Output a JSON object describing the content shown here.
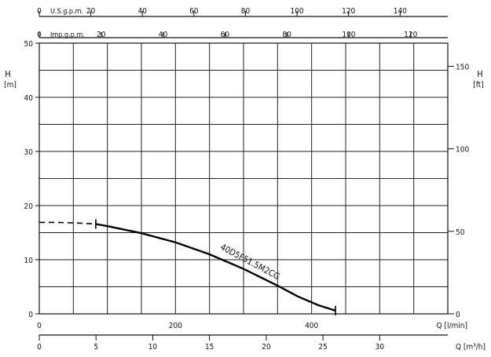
{
  "chart_data": {
    "type": "line",
    "h_axis_m": {
      "label_main": "H",
      "label_unit": "[m]",
      "range": [
        0,
        50
      ],
      "ticks": [
        0,
        10,
        20,
        30,
        40,
        50
      ]
    },
    "h_axis_ft": {
      "label_main": "H",
      "label_unit": "[ft]",
      "range_ft": [
        0,
        164.04
      ],
      "ticks": [
        0,
        50,
        100,
        150
      ]
    },
    "q_axis_lmin": {
      "label": "Q [l/min]",
      "range": [
        0,
        600
      ],
      "ticks": [
        0,
        200,
        400
      ]
    },
    "q_axis_m3h": {
      "label": "Q [m³/h]",
      "range": [
        0,
        36
      ],
      "ticks": [
        0,
        5,
        10,
        15,
        20,
        25,
        30
      ]
    },
    "usgpm_axis": {
      "label": "U.S.g.p.m.",
      "range": [
        0,
        158.5
      ],
      "ticks": [
        0,
        20,
        40,
        60,
        80,
        100,
        120,
        140
      ]
    },
    "impgpm_axis": {
      "label": "Imp.g.p.m.",
      "range": [
        0,
        132
      ],
      "ticks": [
        0,
        20,
        40,
        60,
        80,
        100,
        120
      ]
    },
    "series": [
      {
        "name": "40D5F51.5M2CG",
        "dashed_part": {
          "x": [
            0,
            20,
            40,
            60,
            83
          ],
          "y": [
            16.9,
            16.9,
            16.85,
            16.75,
            16.6
          ]
        },
        "solid_part": {
          "x": [
            83,
            100,
            150,
            200,
            250,
            300,
            350,
            380,
            410,
            435
          ],
          "y": [
            16.6,
            16.2,
            14.9,
            13.2,
            11.0,
            8.3,
            5.2,
            3.2,
            1.6,
            0.6
          ]
        },
        "end_marks": [
          83,
          435
        ]
      }
    ],
    "grid": true
  }
}
